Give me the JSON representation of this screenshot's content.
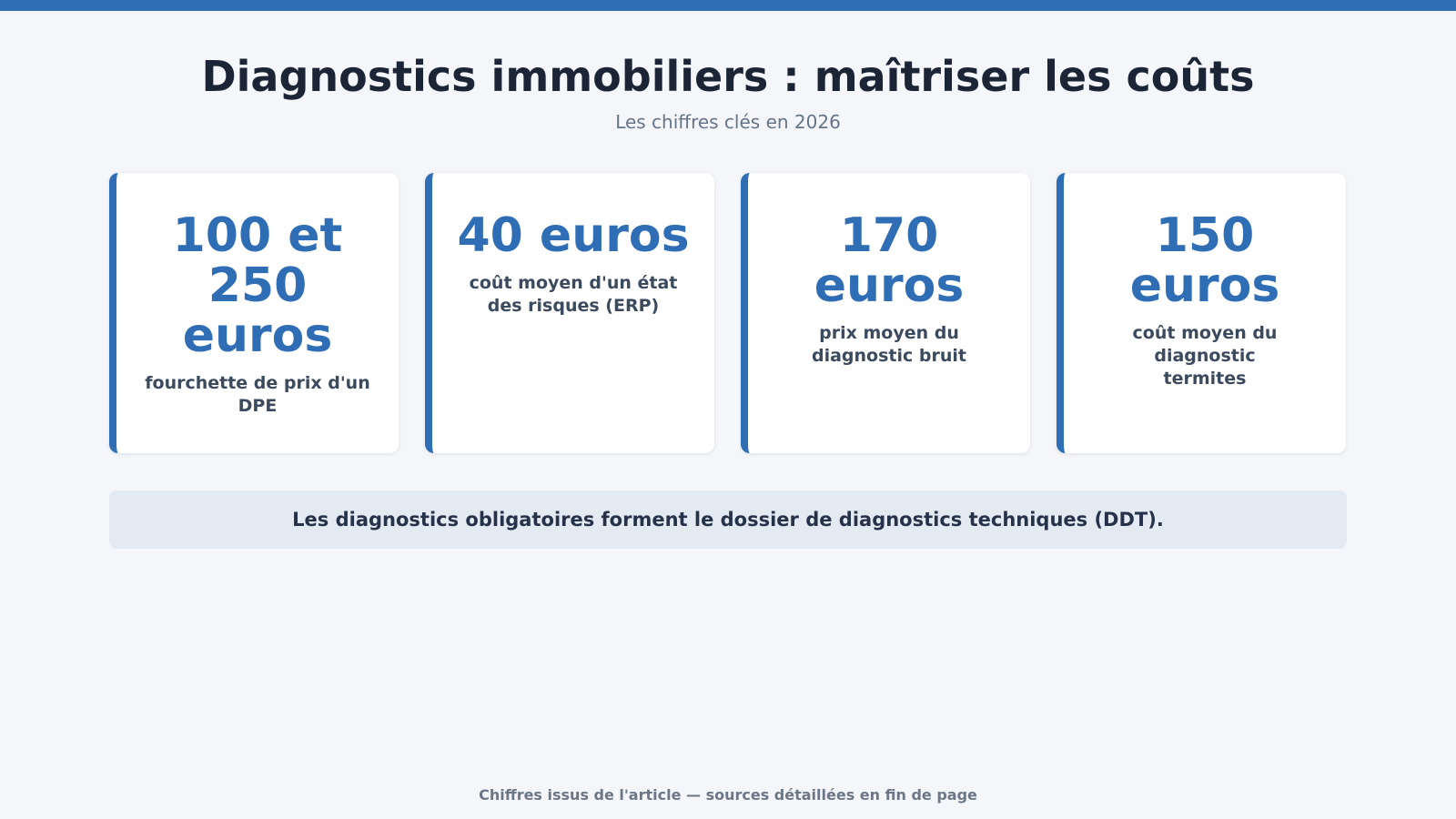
{
  "header": {
    "title": "Diagnostics immobiliers : maîtriser les coûts",
    "subtitle": "Les chiffres clés en 2026"
  },
  "cards": [
    {
      "value": "100 et 250 euros",
      "label": "fourchette de prix d'un DPE"
    },
    {
      "value": "40 euros",
      "label": "coût moyen d'un état des risques (ERP)"
    },
    {
      "value": "170 euros",
      "label": "prix moyen du diagnostic bruit"
    },
    {
      "value": "150 euros",
      "label": "coût moyen du diagnostic termites"
    }
  ],
  "banner": {
    "text": "Les diagnostics obligatoires forment le dossier de diagnostics techniques (DDT)."
  },
  "footer": {
    "text": "Chiffres issus de l'article — sources détaillées en fin de page"
  },
  "colors": {
    "accent": "#2f6db5",
    "background": "#f4f6fa",
    "banner": "#e4eaf2"
  }
}
